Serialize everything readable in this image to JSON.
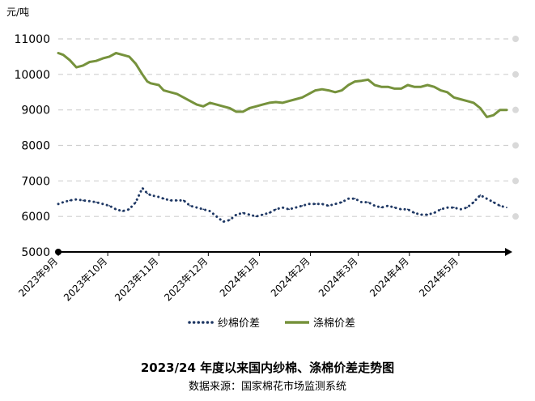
{
  "chart_data": {
    "type": "line",
    "title": "2023/24 年度以来国内纱棉、涤棉价差走势图",
    "source": "数据来源：国家棉花市场监测系统",
    "yunit": "元/吨",
    "ylim": [
      5000,
      11000
    ],
    "yticks": [
      5000,
      6000,
      7000,
      8000,
      9000,
      10000,
      11000
    ],
    "grid": "horizontal dashed",
    "legend_position": "bottom",
    "xlim": [
      "2023-09-01",
      "2024-05-31"
    ],
    "xticks": [
      "2023年9月",
      "2023年10月",
      "2023年11月",
      "2023年12月",
      "2024年1月",
      "2024年2月",
      "2024年3月",
      "2024年4月",
      "2024年5月"
    ],
    "xtick_dates": [
      "2023-09-01",
      "2023-10-01",
      "2023-11-01",
      "2023-12-01",
      "2024-01-01",
      "2024-02-01",
      "2024-03-01",
      "2024-04-01",
      "2024-05-01"
    ],
    "series": [
      {
        "name": "纱棉价差",
        "style": "dotted",
        "color": "#1f3864",
        "x": [
          "2023-09-01",
          "2023-09-04",
          "2023-09-08",
          "2023-09-12",
          "2023-09-16",
          "2023-09-20",
          "2023-09-24",
          "2023-09-28",
          "2023-10-02",
          "2023-10-06",
          "2023-10-10",
          "2023-10-14",
          "2023-10-18",
          "2023-10-22",
          "2023-10-25",
          "2023-10-27",
          "2023-11-01",
          "2023-11-04",
          "2023-11-08",
          "2023-11-12",
          "2023-11-16",
          "2023-11-20",
          "2023-11-24",
          "2023-11-28",
          "2023-12-02",
          "2023-12-06",
          "2023-12-10",
          "2023-12-14",
          "2023-12-18",
          "2023-12-22",
          "2023-12-26",
          "2023-12-30",
          "2024-01-03",
          "2024-01-07",
          "2024-01-11",
          "2024-01-15",
          "2024-01-19",
          "2024-01-23",
          "2024-01-27",
          "2024-01-31",
          "2024-02-04",
          "2024-02-08",
          "2024-02-12",
          "2024-02-16",
          "2024-02-20",
          "2024-02-24",
          "2024-02-28",
          "2024-03-03",
          "2024-03-07",
          "2024-03-11",
          "2024-03-15",
          "2024-03-19",
          "2024-03-23",
          "2024-03-27",
          "2024-03-31",
          "2024-04-04",
          "2024-04-08",
          "2024-04-12",
          "2024-04-16",
          "2024-04-20",
          "2024-04-24",
          "2024-04-28",
          "2024-05-02",
          "2024-05-06",
          "2024-05-10",
          "2024-05-14",
          "2024-05-18",
          "2024-05-22",
          "2024-05-26",
          "2024-05-30"
        ],
        "values": [
          6350,
          6400,
          6450,
          6480,
          6450,
          6430,
          6400,
          6350,
          6300,
          6200,
          6150,
          6200,
          6400,
          6800,
          6650,
          6600,
          6550,
          6500,
          6450,
          6450,
          6450,
          6300,
          6250,
          6200,
          6150,
          6000,
          5850,
          5900,
          6050,
          6100,
          6050,
          6000,
          6050,
          6100,
          6200,
          6250,
          6200,
          6250,
          6300,
          6350,
          6350,
          6350,
          6300,
          6350,
          6400,
          6500,
          6500,
          6400,
          6400,
          6300,
          6250,
          6300,
          6250,
          6200,
          6200,
          6100,
          6050,
          6050,
          6100,
          6200,
          6250,
          6250,
          6200,
          6250,
          6400,
          6600,
          6500,
          6400,
          6300,
          6250
        ]
      },
      {
        "name": "涤棉价差",
        "style": "solid",
        "color": "#76923c",
        "x": [
          "2023-09-01",
          "2023-09-04",
          "2023-09-08",
          "2023-09-12",
          "2023-09-16",
          "2023-09-20",
          "2023-09-24",
          "2023-09-28",
          "2023-10-02",
          "2023-10-06",
          "2023-10-10",
          "2023-10-14",
          "2023-10-18",
          "2023-10-22",
          "2023-10-25",
          "2023-10-27",
          "2023-11-01",
          "2023-11-04",
          "2023-11-08",
          "2023-11-12",
          "2023-11-16",
          "2023-11-20",
          "2023-11-24",
          "2023-11-28",
          "2023-12-02",
          "2023-12-06",
          "2023-12-10",
          "2023-12-14",
          "2023-12-18",
          "2023-12-22",
          "2023-12-26",
          "2023-12-30",
          "2024-01-03",
          "2024-01-07",
          "2024-01-11",
          "2024-01-15",
          "2024-01-19",
          "2024-01-23",
          "2024-01-27",
          "2024-01-31",
          "2024-02-04",
          "2024-02-08",
          "2024-02-12",
          "2024-02-16",
          "2024-02-20",
          "2024-02-24",
          "2024-02-28",
          "2024-03-03",
          "2024-03-07",
          "2024-03-11",
          "2024-03-15",
          "2024-03-19",
          "2024-03-23",
          "2024-03-27",
          "2024-03-31",
          "2024-04-04",
          "2024-04-08",
          "2024-04-12",
          "2024-04-16",
          "2024-04-20",
          "2024-04-24",
          "2024-04-28",
          "2024-05-02",
          "2024-05-06",
          "2024-05-10",
          "2024-05-14",
          "2024-05-18",
          "2024-05-22",
          "2024-05-26",
          "2024-05-30"
        ],
        "values": [
          10600,
          10550,
          10400,
          10200,
          10250,
          10350,
          10380,
          10450,
          10500,
          10600,
          10550,
          10500,
          10300,
          10000,
          9800,
          9750,
          9700,
          9550,
          9500,
          9450,
          9350,
          9250,
          9150,
          9100,
          9200,
          9150,
          9100,
          9050,
          8950,
          8950,
          9050,
          9100,
          9150,
          9200,
          9220,
          9200,
          9250,
          9300,
          9350,
          9450,
          9550,
          9580,
          9550,
          9500,
          9550,
          9700,
          9800,
          9820,
          9850,
          9700,
          9650,
          9650,
          9600,
          9600,
          9700,
          9650,
          9650,
          9700,
          9650,
          9550,
          9500,
          9350,
          9300,
          9250,
          9200,
          9050,
          8800,
          8850,
          9000,
          9000
        ]
      }
    ]
  }
}
